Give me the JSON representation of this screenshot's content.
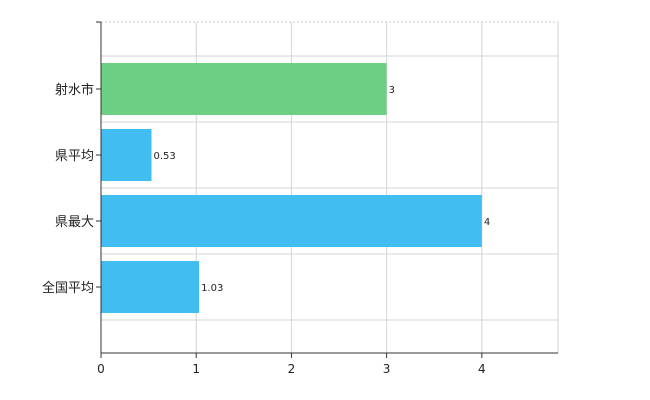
{
  "chart_data": {
    "type": "bar",
    "orientation": "horizontal",
    "categories": [
      "射水市",
      "県平均",
      "県最大",
      "全国平均"
    ],
    "values": [
      3,
      0.53,
      4,
      1.03
    ],
    "data_labels": [
      "3",
      "0.53",
      "4",
      "1.03"
    ],
    "bar_colors": [
      "#6ccf84",
      "#41bdf2",
      "#41bdf2",
      "#41bdf2"
    ],
    "xlim": [
      0,
      4.8
    ],
    "xticks": [
      0,
      1,
      2,
      3,
      4
    ],
    "x_tick_labels": [
      "0",
      "1",
      "2",
      "3",
      "4"
    ],
    "grid": true,
    "legend": "none",
    "title": "",
    "xlabel": "",
    "ylabel": ""
  }
}
